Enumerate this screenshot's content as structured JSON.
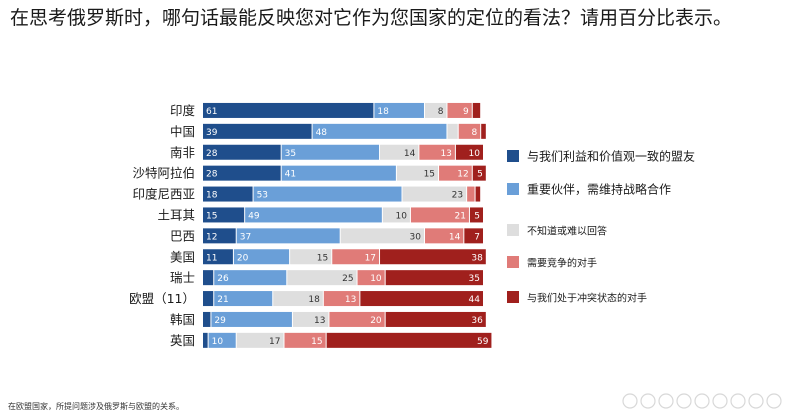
{
  "title": "在思考俄罗斯时，哪句话最能反映您对它作为您国家的定位的看法？请用百分比表示。",
  "footnote": "在欧盟国家，所提问题涉及俄罗斯与欧盟的关系。",
  "colors": [
    "#1f4e8c",
    "#6a9fd8",
    "#dedede",
    "#e07b78",
    "#a0201d"
  ],
  "chart_data": {
    "type": "bar",
    "orientation": "horizontal",
    "stacked": true,
    "categories": [
      "印度",
      "中国",
      "南非",
      "沙特阿拉伯",
      "印度尼西亚",
      "土耳其",
      "巴西",
      "美国",
      "瑞士",
      "欧盟（11）",
      "韩国",
      "英国"
    ],
    "series": [
      {
        "name": "与我们利益和价值观一致的盟友",
        "values": [
          61,
          39,
          28,
          28,
          18,
          15,
          12,
          11,
          4,
          4,
          3,
          2
        ]
      },
      {
        "name": "重要伙伴，需维持战略合作",
        "values": [
          18,
          48,
          35,
          41,
          53,
          49,
          37,
          20,
          26,
          21,
          29,
          10
        ]
      },
      {
        "name": "不知道或难以回答",
        "values": [
          8,
          4,
          14,
          15,
          23,
          10,
          30,
          15,
          25,
          18,
          13,
          17
        ]
      },
      {
        "name": "需要竞争的对手",
        "values": [
          9,
          8,
          13,
          12,
          3,
          21,
          14,
          17,
          10,
          13,
          20,
          15
        ]
      },
      {
        "name": "与我们处于冲突状态的对手",
        "values": [
          3,
          2,
          10,
          5,
          2,
          5,
          7,
          38,
          35,
          44,
          36,
          59
        ]
      }
    ],
    "labels": [
      [
        "61",
        "18",
        "8",
        "9",
        ""
      ],
      [
        "39",
        "48",
        "",
        "8",
        ""
      ],
      [
        "28",
        "35",
        "14",
        "13",
        "10"
      ],
      [
        "28",
        "41",
        "15",
        "12",
        "5"
      ],
      [
        "18",
        "53",
        "23",
        "",
        ""
      ],
      [
        "15",
        "49",
        "10",
        "21",
        "5"
      ],
      [
        "12",
        "37",
        "30",
        "14",
        "7"
      ],
      [
        "11",
        "20",
        "15",
        "17",
        "38"
      ],
      [
        "",
        "26",
        "25",
        "10",
        "35"
      ],
      [
        "",
        "21",
        "18",
        "13",
        "44"
      ],
      [
        "",
        "29",
        "13",
        "20",
        "36"
      ],
      [
        "",
        "10",
        "17",
        "15",
        "59"
      ]
    ],
    "legend_position": "right",
    "grid": false
  }
}
